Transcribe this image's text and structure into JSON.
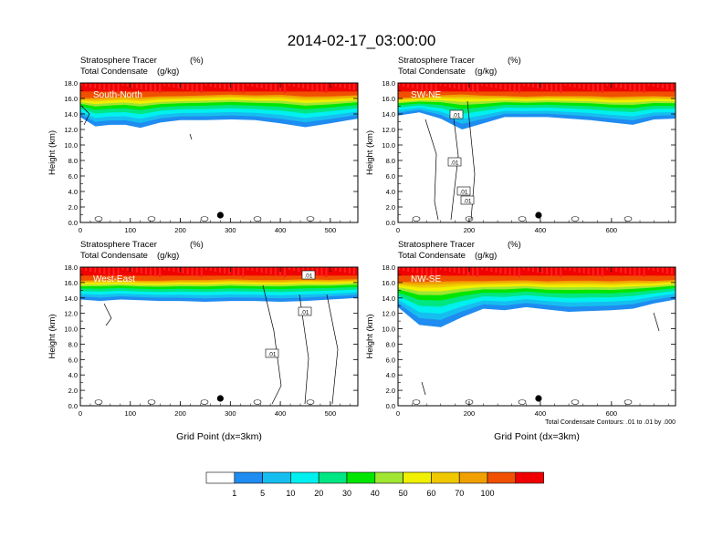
{
  "title": "2014-02-17_03:00:00",
  "colors": {
    "levels": [
      "#ffffff",
      "#1e8cf0",
      "#16bef0",
      "#00f0f0",
      "#00e682",
      "#00e600",
      "#a0e632",
      "#f0f000",
      "#f0c800",
      "#f0a000",
      "#f05000",
      "#f00000"
    ],
    "contour_line": "#000000"
  },
  "chart_data": [
    {
      "type": "heatmap",
      "panel_label": "South-North",
      "left_string_1": "Stratosphere Tracer",
      "right_string_1": "(%)",
      "left_string_2": "Total Condensate",
      "right_string_2": "(g/kg)",
      "ylabel": "Height (km)",
      "xlabel": "",
      "xlim": [
        0,
        555
      ],
      "ylim": [
        0,
        18
      ],
      "xticks": [
        0,
        100,
        200,
        300,
        400,
        500
      ],
      "yticks": [
        "0.0",
        "2.0",
        "4.0",
        "6.0",
        "8.0",
        "10.0",
        "12.0",
        "14.0",
        "16.0",
        "18.0"
      ],
      "tracer_band": {
        "x": [
          0,
          30,
          60,
          90,
          120,
          160,
          200,
          250,
          300,
          350,
          400,
          450,
          500,
          555
        ],
        "base_km": [
          13.6,
          12.4,
          12.6,
          12.6,
          12.2,
          12.9,
          13.2,
          13.2,
          13.3,
          13.2,
          12.8,
          12.3,
          12.8,
          13.4
        ],
        "top_km": [
          16.2,
          16.3,
          16.4,
          16.5,
          16.4,
          16.5,
          16.5,
          16.6,
          16.7,
          16.6,
          16.7,
          16.5,
          16.5,
          16.6
        ]
      },
      "contour_labels": [],
      "marker_x": 280,
      "footnote": ""
    },
    {
      "type": "heatmap",
      "panel_label": "SW-NE",
      "left_string_1": "Stratosphere Tracer",
      "right_string_1": "(%)",
      "left_string_2": "Total Condensate",
      "right_string_2": "(g/kg)",
      "ylabel": "Height (km)",
      "xlabel": "",
      "xlim": [
        0,
        780
      ],
      "ylim": [
        0,
        18
      ],
      "xticks": [
        0,
        200,
        400,
        600
      ],
      "yticks": [
        "0.0",
        "2.0",
        "4.0",
        "6.0",
        "8.0",
        "10.0",
        "12.0",
        "14.0",
        "16.0",
        "18.0"
      ],
      "tracer_band": {
        "x": [
          0,
          60,
          120,
          180,
          240,
          300,
          360,
          420,
          480,
          540,
          600,
          660,
          720,
          780
        ],
        "base_km": [
          13.8,
          14.2,
          13.4,
          12.0,
          12.8,
          13.6,
          13.6,
          13.6,
          13.4,
          13.2,
          12.9,
          12.6,
          13.3,
          13.4
        ],
        "top_km": [
          16.2,
          16.3,
          16.6,
          16.8,
          16.6,
          16.5,
          16.4,
          16.5,
          16.5,
          16.5,
          16.4,
          16.5,
          16.5,
          16.4
        ]
      },
      "contour_labels": [
        ".01",
        ".01",
        ".01",
        ".01"
      ],
      "marker_x": 395,
      "footnote": ""
    },
    {
      "type": "heatmap",
      "panel_label": "West-East",
      "left_string_1": "Stratosphere Tracer",
      "right_string_1": "(%)",
      "left_string_2": "Total Condensate",
      "right_string_2": "(g/kg)",
      "ylabel": "Height (km)",
      "xlabel": "Grid Point (dx=3km)",
      "xlim": [
        0,
        555
      ],
      "ylim": [
        0,
        18
      ],
      "xticks": [
        0,
        100,
        200,
        300,
        400,
        500
      ],
      "yticks": [
        "0.0",
        "2.0",
        "4.0",
        "6.0",
        "8.0",
        "10.0",
        "12.0",
        "14.0",
        "16.0",
        "18.0"
      ],
      "tracer_band": {
        "x": [
          0,
          40,
          80,
          120,
          160,
          200,
          250,
          300,
          350,
          400,
          450,
          500,
          555
        ],
        "base_km": [
          13.8,
          13.6,
          13.8,
          13.7,
          13.6,
          13.6,
          13.5,
          13.6,
          13.6,
          13.5,
          13.6,
          13.8,
          14.0
        ],
        "top_km": [
          16.4,
          16.5,
          16.5,
          16.4,
          16.4,
          16.5,
          16.5,
          16.6,
          16.5,
          16.5,
          16.6,
          16.5,
          16.6
        ]
      },
      "contour_labels": [
        ".01",
        ".01",
        ".01"
      ],
      "marker_x": 280,
      "footnote": ""
    },
    {
      "type": "heatmap",
      "panel_label": "NW-SE",
      "left_string_1": "Stratosphere Tracer",
      "right_string_1": "(%)",
      "left_string_2": "Total Condensate",
      "right_string_2": "(g/kg)",
      "ylabel": "Height (km)",
      "xlabel": "Grid Point (dx=3km)",
      "xlim": [
        0,
        780
      ],
      "ylim": [
        0,
        18
      ],
      "xticks": [
        0,
        200,
        400,
        600
      ],
      "yticks": [
        "0.0",
        "2.0",
        "4.0",
        "6.0",
        "8.0",
        "10.0",
        "12.0",
        "14.0",
        "16.0",
        "18.0"
      ],
      "tracer_band": {
        "x": [
          0,
          60,
          120,
          180,
          240,
          300,
          360,
          420,
          480,
          540,
          600,
          660,
          720,
          780
        ],
        "base_km": [
          12.8,
          10.5,
          10.2,
          11.5,
          12.6,
          12.4,
          12.8,
          12.5,
          12.2,
          12.3,
          12.4,
          12.6,
          13.3,
          13.8
        ],
        "top_km": [
          16.3,
          16.4,
          16.5,
          16.5,
          16.4,
          16.5,
          16.5,
          16.4,
          16.5,
          16.5,
          16.4,
          16.5,
          16.4,
          16.5
        ]
      },
      "contour_labels": [],
      "marker_x": 395,
      "footnote": "Total Condensate Contours: .01 to .01 by .000"
    }
  ],
  "colorbar": {
    "labels": [
      "1",
      "5",
      "10",
      "20",
      "30",
      "40",
      "50",
      "60",
      "70",
      "100"
    ]
  }
}
